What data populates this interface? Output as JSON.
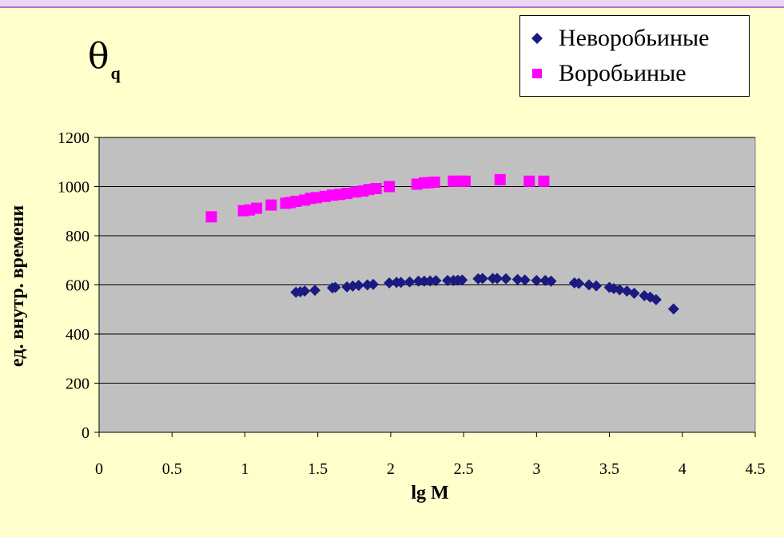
{
  "slide": {
    "symbol": "θ",
    "subscript": "q"
  },
  "legend": {
    "items": [
      {
        "label": "Неворобьиные",
        "marker": "diamond",
        "color": "#1A1A80"
      },
      {
        "label": "Воробьиные",
        "marker": "square",
        "color": "#FF00FF"
      }
    ]
  },
  "chart_data": {
    "type": "scatter",
    "xlabel": "lg M",
    "ylabel": "ед. внутр. времени",
    "xlim": [
      0,
      4.5
    ],
    "ylim": [
      0,
      1200
    ],
    "x_ticks": [
      "0",
      "0.5",
      "1",
      "1.5",
      "2",
      "2.5",
      "3",
      "3.5",
      "4",
      "4.5"
    ],
    "y_ticks": [
      "0",
      "200",
      "400",
      "600",
      "800",
      "1000",
      "1200"
    ],
    "grid": "horizontal",
    "plot_background": "#C0C0C0",
    "legend_position": "top-right",
    "series": [
      {
        "name": "Неворобьиные",
        "marker": "diamond",
        "color": "#1A1A80",
        "points": [
          [
            1.35,
            570
          ],
          [
            1.38,
            572
          ],
          [
            1.41,
            575
          ],
          [
            1.48,
            578
          ],
          [
            1.6,
            588
          ],
          [
            1.62,
            590
          ],
          [
            1.7,
            592
          ],
          [
            1.74,
            595
          ],
          [
            1.78,
            598
          ],
          [
            1.84,
            600
          ],
          [
            1.88,
            602
          ],
          [
            1.99,
            608
          ],
          [
            2.04,
            610
          ],
          [
            2.07,
            610
          ],
          [
            2.13,
            612
          ],
          [
            2.19,
            615
          ],
          [
            2.23,
            615
          ],
          [
            2.27,
            616
          ],
          [
            2.31,
            617
          ],
          [
            2.39,
            618
          ],
          [
            2.43,
            618
          ],
          [
            2.46,
            619
          ],
          [
            2.49,
            620
          ],
          [
            2.6,
            625
          ],
          [
            2.63,
            626
          ],
          [
            2.7,
            626
          ],
          [
            2.73,
            626
          ],
          [
            2.79,
            625
          ],
          [
            2.87,
            622
          ],
          [
            2.92,
            620
          ],
          [
            3.0,
            618
          ],
          [
            3.06,
            618
          ],
          [
            3.1,
            615
          ],
          [
            3.26,
            608
          ],
          [
            3.29,
            606
          ],
          [
            3.36,
            600
          ],
          [
            3.41,
            596
          ],
          [
            3.5,
            590
          ],
          [
            3.53,
            585
          ],
          [
            3.57,
            580
          ],
          [
            3.62,
            575
          ],
          [
            3.67,
            566
          ],
          [
            3.74,
            556
          ],
          [
            3.78,
            550
          ],
          [
            3.82,
            540
          ],
          [
            3.94,
            502
          ]
        ]
      },
      {
        "name": "Воробьиные",
        "marker": "square",
        "color": "#FF00FF",
        "points": [
          [
            0.77,
            877
          ],
          [
            0.99,
            902
          ],
          [
            1.03,
            905
          ],
          [
            1.08,
            912
          ],
          [
            1.18,
            925
          ],
          [
            1.28,
            932
          ],
          [
            1.31,
            935
          ],
          [
            1.35,
            940
          ],
          [
            1.41,
            945
          ],
          [
            1.45,
            952
          ],
          [
            1.49,
            955
          ],
          [
            1.55,
            960
          ],
          [
            1.6,
            965
          ],
          [
            1.65,
            968
          ],
          [
            1.7,
            972
          ],
          [
            1.76,
            978
          ],
          [
            1.81,
            982
          ],
          [
            1.85,
            988
          ],
          [
            1.9,
            992
          ],
          [
            1.99,
            1000
          ],
          [
            2.18,
            1010
          ],
          [
            2.23,
            1015
          ],
          [
            2.26,
            1016
          ],
          [
            2.3,
            1018
          ],
          [
            2.43,
            1022
          ],
          [
            2.47,
            1022
          ],
          [
            2.51,
            1022
          ],
          [
            2.75,
            1028
          ],
          [
            2.95,
            1022
          ],
          [
            3.05,
            1022
          ]
        ]
      }
    ]
  }
}
